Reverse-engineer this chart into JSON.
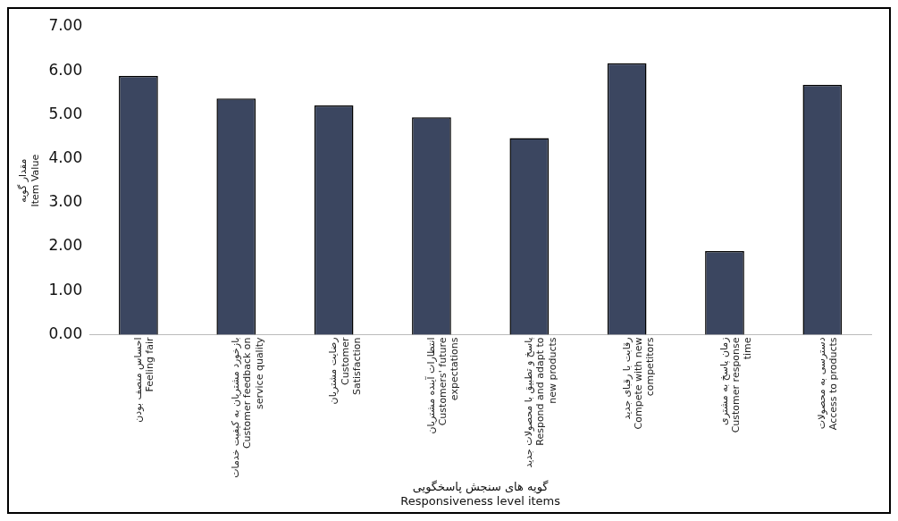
{
  "chart_data": {
    "type": "bar",
    "xlabel": "گویه های سنجش پاسخگویی\nResponsiveness level items",
    "ylabel": "مقدار گویه\nItem Value",
    "categories": [
      "احساس منصف بودن\nFeeling fair",
      "بازخورد مشتریان به کیفیت خدمات\nCustomer feedback on\nservice quality",
      "رضایت مشتریان\nCustomer\nSatisfaction",
      "انتظارات آینده مشتریان\nCustomers' future\nexpectations",
      "پاسخ و تطبیق با محصولات جدید\nRespond and adapt to\nnew products",
      "رقابت با رقبای جدید\nCompete with new\ncompetitors",
      "زمان پاسخ به مشتری\nCustomer response\ntime",
      "دسترسی به محصولات\nAccess to products"
    ],
    "values": [
      5.88,
      5.37,
      5.21,
      4.94,
      4.47,
      6.17,
      1.9,
      5.68
    ],
    "color": "#3b4660",
    "ylim": [
      0,
      7
    ],
    "yticks": [
      {
        "value": 0,
        "label": "0.00"
      },
      {
        "value": 1,
        "label": "1.00"
      },
      {
        "value": 2,
        "label": "2.00"
      },
      {
        "value": 3,
        "label": "3.00"
      },
      {
        "value": 4,
        "label": "4.00"
      },
      {
        "value": 5,
        "label": "5.00"
      },
      {
        "value": 6,
        "label": "6.00"
      },
      {
        "value": 7,
        "label": "7.00"
      }
    ],
    "grid": false,
    "legend": false
  }
}
